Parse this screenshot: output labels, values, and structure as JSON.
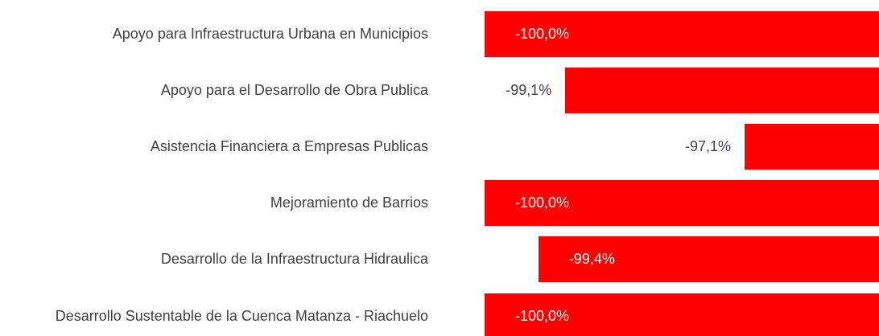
{
  "chart_data": {
    "type": "bar",
    "orientation": "horizontal",
    "categories": [
      "Apoyo para Infraestructura Urbana en Municipios",
      "Apoyo para el Desarrollo de Obra Publica",
      "Asistencia Financiera a Empresas Publicas",
      "Mejoramiento de Barrios",
      "Desarrollo de la Infraestructura Hidraulica",
      "Desarrollo Sustentable de la Cuenca Matanza - Riachuelo"
    ],
    "values": [
      -100.0,
      -99.1,
      -97.1,
      -100.0,
      -99.4,
      -100.0
    ],
    "value_labels": [
      "-100,0%",
      "-99,1%",
      "-97,1%",
      "-100,0%",
      "-99,4%",
      "-100,0%"
    ],
    "color": "#ff0000",
    "xlim": [
      -100,
      -95.6
    ]
  }
}
